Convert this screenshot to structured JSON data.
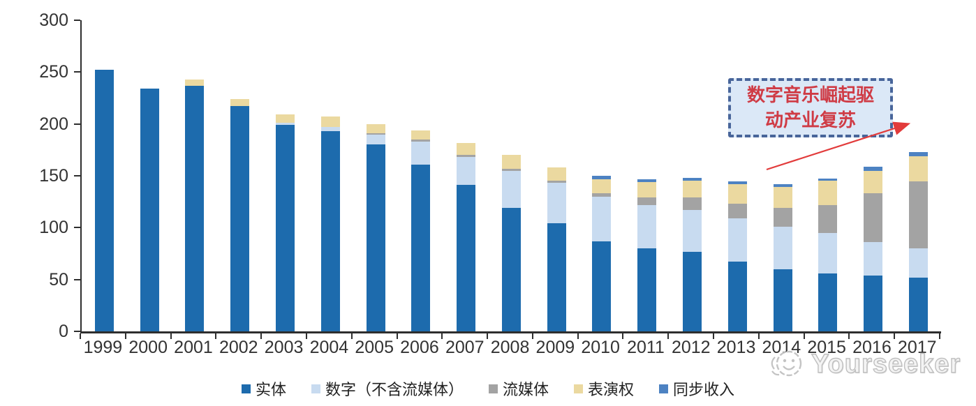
{
  "chart_data": {
    "type": "bar",
    "stacked": true,
    "title": "",
    "categories": [
      "1999",
      "2000",
      "2001",
      "2002",
      "2003",
      "2004",
      "2005",
      "2006",
      "2007",
      "2008",
      "2009",
      "2010",
      "2011",
      "2012",
      "2013",
      "2014",
      "2015",
      "2016",
      "2017"
    ],
    "series": [
      {
        "key": "physical",
        "name": "实体",
        "color": "#1d6bad",
        "values": [
          252,
          234,
          237,
          217,
          199,
          193,
          180,
          161,
          141,
          119,
          104,
          87,
          80,
          77,
          67,
          60,
          56,
          54,
          52
        ]
      },
      {
        "key": "digital_excl_streaming",
        "name": "数字（不含流媒体）",
        "color": "#c8dbf0",
        "values": [
          0,
          0,
          0,
          0,
          2,
          4,
          10,
          22,
          27,
          36,
          39,
          43,
          42,
          40,
          42,
          41,
          39,
          32,
          28
        ]
      },
      {
        "key": "streaming",
        "name": "流媒体",
        "color": "#a3a3a3",
        "values": [
          0,
          0,
          0,
          0,
          0,
          0,
          1,
          2,
          2,
          2,
          2,
          3,
          7,
          12,
          14,
          18,
          27,
          47,
          65
        ]
      },
      {
        "key": "performance_rights",
        "name": "表演权",
        "color": "#ebd9a0",
        "values": [
          0,
          0,
          6,
          7,
          8,
          10,
          9,
          9,
          12,
          13,
          13,
          14,
          15,
          16,
          19,
          20,
          23,
          22,
          24
        ]
      },
      {
        "key": "sync_revenue",
        "name": "同步收入",
        "color": "#4d82c2",
        "values": [
          0,
          0,
          0,
          0,
          0,
          0,
          0,
          0,
          0,
          0,
          0,
          3,
          3,
          3,
          3,
          3,
          2,
          4,
          4
        ]
      }
    ],
    "ylim": [
      0,
      300
    ],
    "yticks": [
      0,
      50,
      100,
      150,
      200,
      250,
      300
    ],
    "grid": false,
    "legend_position": "bottom"
  },
  "annotation": {
    "line1": "数字音乐崛起驱",
    "line2": "动产业复苏",
    "text_color": "#cf3b45",
    "box_fill": "#dbe8f7",
    "box_border_color": "#48659a",
    "arrow_color": "#e23b3b"
  },
  "watermark": {
    "text": "Yourseeker"
  },
  "colors": {
    "axis": "#2e2e2e",
    "label_text": "#333333",
    "background": "#ffffff"
  }
}
